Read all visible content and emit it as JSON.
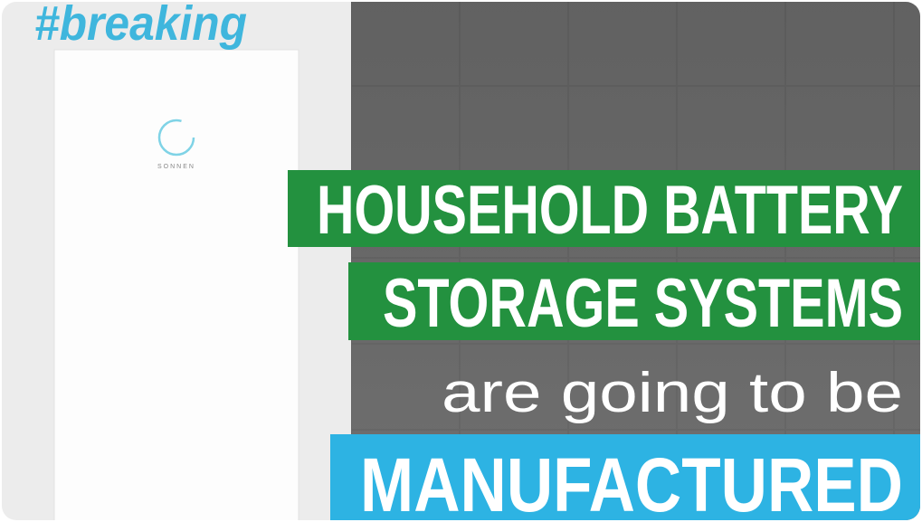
{
  "hashtag": "#breaking",
  "device": {
    "logo": "SONNEN"
  },
  "headline": {
    "line1": "HOUSEHOLD BATTERY",
    "line2": "STORAGE SYSTEMS",
    "line3": "are going to be",
    "line4": "MANUFACTURED"
  }
}
